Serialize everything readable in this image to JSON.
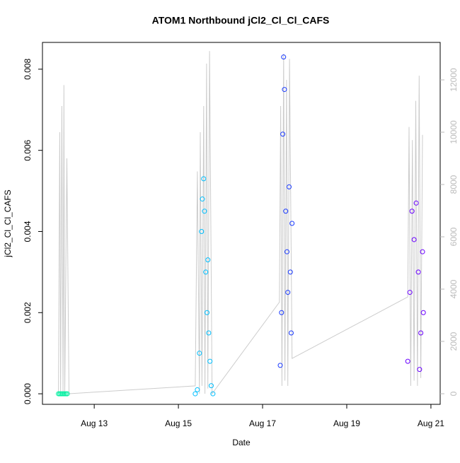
{
  "chart_data": {
    "type": "scatter",
    "title": "ATOM1 Northbound jCl2_Cl_Cl_CAFS",
    "xlabel": "Date",
    "ylabel": "jCl2_Cl_Cl_CAFS",
    "xlim": [
      11.77,
      21.22
    ],
    "xticks": [
      {
        "value": 13,
        "label": "Aug 13"
      },
      {
        "value": 15,
        "label": "Aug 15"
      },
      {
        "value": 17,
        "label": "Aug 17"
      },
      {
        "value": 19,
        "label": "Aug 19"
      },
      {
        "value": 21,
        "label": "Aug 21"
      }
    ],
    "ylim": [
      -0.00026,
      0.00866
    ],
    "yticks": [
      {
        "value": 0,
        "label": "0.000"
      },
      {
        "value": 0.002,
        "label": "0.002"
      },
      {
        "value": 0.004,
        "label": "0.004"
      },
      {
        "value": 0.006,
        "label": "0.006"
      },
      {
        "value": 0.008,
        "label": "0.008"
      }
    ],
    "y2lim": [
      -405,
      13432
    ],
    "y2ticks": [
      0,
      2000,
      4000,
      6000,
      8000,
      10000,
      12000
    ],
    "series": [
      {
        "type": "line",
        "axis": "y2",
        "color": "#cccccc",
        "x": [
          12.15,
          12.18,
          12.2,
          12.23,
          12.26,
          12.28,
          12.3,
          12.35,
          12.4,
          15.4,
          15.45,
          15.5,
          15.52,
          15.56,
          15.6,
          15.63,
          15.67,
          15.7,
          15.74,
          15.8,
          17.4,
          17.43,
          17.46,
          17.5,
          17.53,
          17.57,
          17.6,
          17.64,
          17.7,
          20.45,
          20.48,
          20.52,
          20.56,
          20.6,
          20.64,
          20.68,
          20.72,
          20.76,
          20.8
        ],
        "values": [
          0,
          10000,
          0,
          11000,
          0,
          11800,
          0,
          9000,
          0,
          300,
          8500,
          0,
          10000,
          300,
          11000,
          0,
          12620,
          200,
          13100,
          0,
          3500,
          11000,
          300,
          13000,
          500,
          12000,
          300,
          12800,
          1350,
          3700,
          10200,
          300,
          9700,
          500,
          11200,
          300,
          12160,
          600,
          9900
        ]
      },
      {
        "color": "#00f0a0",
        "x": [
          12.15,
          12.18,
          12.21,
          12.24,
          12.27,
          12.3,
          12.33,
          12.36
        ],
        "values": [
          0,
          0,
          0,
          0,
          0,
          0,
          0,
          0
        ]
      },
      {
        "color": "#00bfff",
        "x": [
          15.4,
          15.45,
          15.5,
          15.55,
          15.57,
          15.6,
          15.62,
          15.65,
          15.68,
          15.7,
          15.72,
          15.75,
          15.78,
          15.82
        ],
        "values": [
          0,
          0.0001,
          0.001,
          0.004,
          0.0048,
          0.0053,
          0.0045,
          0.003,
          0.002,
          0.0033,
          0.0015,
          0.0008,
          0.0002,
          0
        ]
      },
      {
        "color": "#1a3aff",
        "x": [
          17.42,
          17.45,
          17.48,
          17.5,
          17.52,
          17.55,
          17.58,
          17.6,
          17.63,
          17.66,
          17.68,
          17.7
        ],
        "values": [
          0.0007,
          0.002,
          0.0064,
          0.0083,
          0.0075,
          0.0045,
          0.0035,
          0.0025,
          0.0051,
          0.003,
          0.0015,
          0.0042
        ]
      },
      {
        "color": "#6a00ff",
        "x": [
          20.45,
          20.5,
          20.55,
          20.6,
          20.65,
          20.7,
          20.73,
          20.76,
          20.8,
          20.82
        ],
        "values": [
          0.0008,
          0.0025,
          0.0045,
          0.0038,
          0.0047,
          0.003,
          0.0006,
          0.0015,
          0.0035,
          0.002
        ]
      }
    ]
  }
}
